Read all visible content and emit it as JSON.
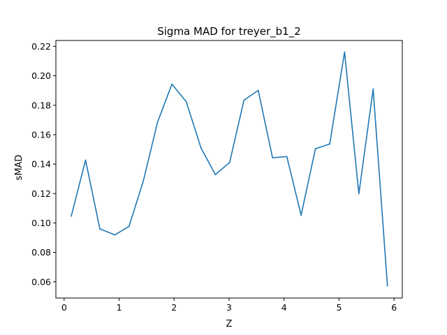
{
  "chart_data": {
    "type": "line",
    "title": "Sigma MAD for treyer_b1_2",
    "xlabel": "Z",
    "ylabel": "sMAD",
    "xlim": [
      -0.15,
      6.15
    ],
    "ylim": [
      0.049,
      0.224
    ],
    "xticks": [
      0,
      1,
      2,
      3,
      4,
      5,
      6
    ],
    "yticks": [
      0.06,
      0.08,
      0.1,
      0.12,
      0.14,
      0.16,
      0.18,
      0.2,
      0.22
    ],
    "xtick_labels": [
      "0",
      "1",
      "2",
      "3",
      "4",
      "5",
      "6"
    ],
    "ytick_labels": [
      "0.06",
      "0.08",
      "0.10",
      "0.12",
      "0.14",
      "0.16",
      "0.18",
      "0.20",
      "0.22"
    ],
    "grid": false,
    "series": [
      {
        "color": "#1f77b4",
        "x": [
          0.13,
          0.39,
          0.65,
          0.92,
          1.18,
          1.44,
          1.7,
          1.96,
          2.22,
          2.49,
          2.75,
          3.01,
          3.27,
          3.53,
          3.79,
          4.05,
          4.31,
          4.57,
          4.83,
          5.1,
          5.36,
          5.62,
          5.88
        ],
        "y": [
          0.1047,
          0.1427,
          0.096,
          0.0919,
          0.0976,
          0.1285,
          0.1686,
          0.1943,
          0.1825,
          0.1509,
          0.1329,
          0.1411,
          0.1834,
          0.1901,
          0.1443,
          0.1451,
          0.1053,
          0.1504,
          0.1537,
          0.2161,
          0.1198,
          0.191,
          0.0573
        ]
      }
    ]
  }
}
